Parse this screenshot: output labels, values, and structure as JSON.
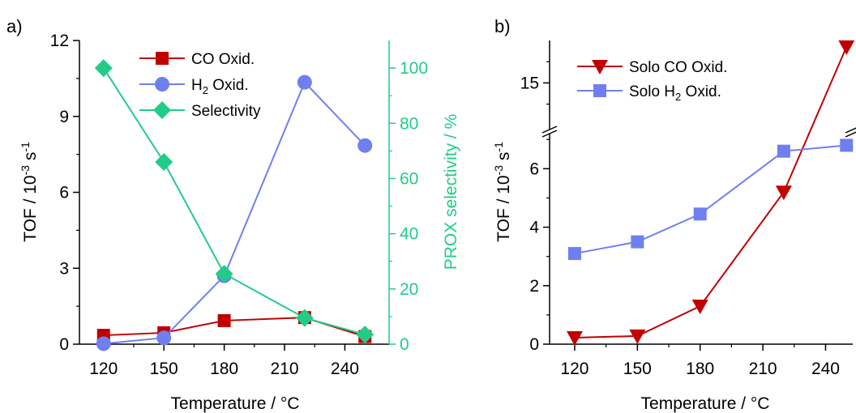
{
  "chart_data": [
    {
      "panel_label": "a)",
      "type": "line",
      "x": [
        120,
        150,
        180,
        220,
        250
      ],
      "xlabel": "Temperature / °C",
      "xticks": [
        120,
        150,
        180,
        210,
        240
      ],
      "xlim": [
        108,
        262
      ],
      "ylabel": "TOF / 10",
      "ylabel_sup": "-3",
      "ylabel_tail": " s",
      "ylabel_sup2": "-1",
      "yticks": [
        0,
        3,
        6,
        9,
        12
      ],
      "ylim": [
        0,
        12
      ],
      "y2label": "PROX selectivity / %",
      "y2ticks": [
        0,
        20,
        40,
        60,
        80,
        100
      ],
      "y2lim": [
        0,
        110
      ],
      "legend_position": "top-left",
      "series": [
        {
          "name": "CO Oxid.",
          "marker": "square",
          "color": "#c00000",
          "axis": "left",
          "values": [
            0.35,
            0.45,
            0.93,
            1.05,
            0.3
          ]
        },
        {
          "name": "H",
          "name_sub": "2",
          "name_tail": " Oxid.",
          "marker": "circle",
          "color": "#6f7ff0",
          "axis": "left",
          "values": [
            0.02,
            0.25,
            2.7,
            10.35,
            7.85
          ]
        },
        {
          "name": "Selectivity",
          "marker": "diamond",
          "color": "#22cc88",
          "axis": "right",
          "values": [
            100,
            66,
            25.5,
            9.5,
            3.5
          ]
        }
      ]
    },
    {
      "panel_label": "b)",
      "type": "line",
      "x": [
        120,
        150,
        180,
        220,
        250
      ],
      "xlabel": "Temperature / °C",
      "xticks": [
        120,
        150,
        180,
        210,
        240
      ],
      "xlim": [
        108,
        253
      ],
      "ylabel": "TOF / 10",
      "ylabel_sup": "-3",
      "ylabel_tail": " s",
      "ylabel_sup2": "-1",
      "yticks_lower": [
        0,
        2,
        4,
        6
      ],
      "ylim_lower": [
        0,
        7.2
      ],
      "yticks_upper": [
        15
      ],
      "ylim_upper": [
        12.8,
        17
      ],
      "axis_break": true,
      "legend_position": "top-left",
      "series": [
        {
          "name": "Solo CO Oxid.",
          "marker": "triangle-down",
          "color": "#c00000",
          "values": [
            0.22,
            0.28,
            1.3,
            5.2,
            16.7
          ]
        },
        {
          "name": "Solo H",
          "name_sub": "2",
          "name_tail": " Oxid.",
          "marker": "square",
          "color": "#6f7ff0",
          "values": [
            3.1,
            3.5,
            4.45,
            6.6,
            6.8
          ]
        }
      ]
    }
  ]
}
